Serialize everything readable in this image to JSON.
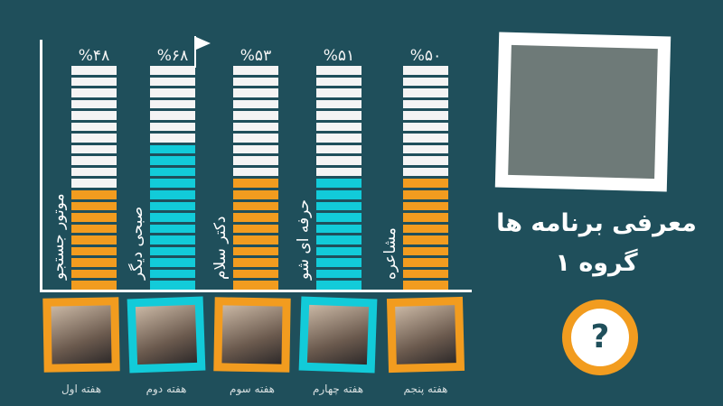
{
  "colors": {
    "background": "#1f4f5b",
    "orange": "#f29c1f",
    "cyan": "#12cbd9",
    "empty": "#f4f4f4"
  },
  "chart_data": {
    "type": "bar",
    "segments_per_bar": 20,
    "categories": [
      "موتور جستجو",
      "صبحی دیگر",
      "دکتر سلام",
      "حرفه ای شو",
      "مشاعره"
    ],
    "values": [
      48,
      68,
      53,
      51,
      50
    ],
    "value_labels": [
      "%۴۸",
      "%۶۸",
      "%۵۳",
      "%۵۱",
      "%۵۰"
    ],
    "bar_colors": [
      "#f29c1f",
      "#12cbd9",
      "#f29c1f",
      "#12cbd9",
      "#f29c1f"
    ],
    "ylim": [
      0,
      100
    ],
    "winner_flag_index": 1
  },
  "weeks": [
    {
      "label": "هفته اول",
      "frame_color": "#f29c1f"
    },
    {
      "label": "هفته دوم",
      "frame_color": "#12cbd9"
    },
    {
      "label": "هفته سوم",
      "frame_color": "#f29c1f"
    },
    {
      "label": "هفته چهارم",
      "frame_color": "#12cbd9"
    },
    {
      "label": "هفته پنجم",
      "frame_color": "#f29c1f"
    }
  ],
  "title": {
    "line1": "معرفی برنامه ها",
    "line2": "گروه ۱"
  },
  "question_button": {
    "label": "?"
  }
}
